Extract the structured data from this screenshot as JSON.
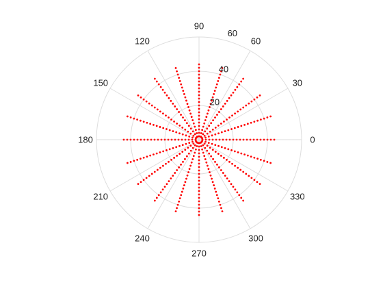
{
  "chart_data": {
    "type": "scatter",
    "subtype": "polar",
    "title": "",
    "grid": true,
    "angle_unit": "degrees",
    "rlim": [
      0,
      60
    ],
    "r_ticks": [
      {
        "value": 20,
        "label": "20"
      },
      {
        "value": 40,
        "label": "40"
      },
      {
        "value": 60,
        "label": "60"
      }
    ],
    "theta_ticks": [
      {
        "value": 0,
        "label": "0"
      },
      {
        "value": 30,
        "label": "30"
      },
      {
        "value": 60,
        "label": "60"
      },
      {
        "value": 90,
        "label": "90"
      },
      {
        "value": 120,
        "label": "120"
      },
      {
        "value": 150,
        "label": "150"
      },
      {
        "value": 180,
        "label": "180"
      },
      {
        "value": 210,
        "label": "210"
      },
      {
        "value": 240,
        "label": "240"
      },
      {
        "value": 270,
        "label": "270"
      },
      {
        "value": 300,
        "label": "300"
      },
      {
        "value": 330,
        "label": "330"
      }
    ],
    "series": [
      {
        "marker": "dot",
        "color": "#ff0000",
        "rays": [
          {
            "theta": 0,
            "r_max": 45
          },
          {
            "theta": 18,
            "r_max": 45
          },
          {
            "theta": 36,
            "r_max": 45
          },
          {
            "theta": 54,
            "r_max": 45
          },
          {
            "theta": 72,
            "r_max": 45
          },
          {
            "theta": 90,
            "r_max": 45
          },
          {
            "theta": 108,
            "r_max": 45
          },
          {
            "theta": 126,
            "r_max": 45
          },
          {
            "theta": 144,
            "r_max": 45
          },
          {
            "theta": 162,
            "r_max": 45
          },
          {
            "theta": 180,
            "r_max": 45
          },
          {
            "theta": 198,
            "r_max": 45
          },
          {
            "theta": 216,
            "r_max": 45
          },
          {
            "theta": 234,
            "r_max": 45
          },
          {
            "theta": 252,
            "r_max": 45
          },
          {
            "theta": 270,
            "r_max": 45
          },
          {
            "theta": 288,
            "r_max": 45
          },
          {
            "theta": 306,
            "r_max": 45
          },
          {
            "theta": 324,
            "r_max": 45
          },
          {
            "theta": 342,
            "r_max": 45
          }
        ],
        "r_start": 2,
        "r_step": 2
      }
    ],
    "colors": {
      "grid": "#dddddd",
      "axis": "#dddddd",
      "text": "#222222",
      "points": "#ff0000"
    }
  }
}
